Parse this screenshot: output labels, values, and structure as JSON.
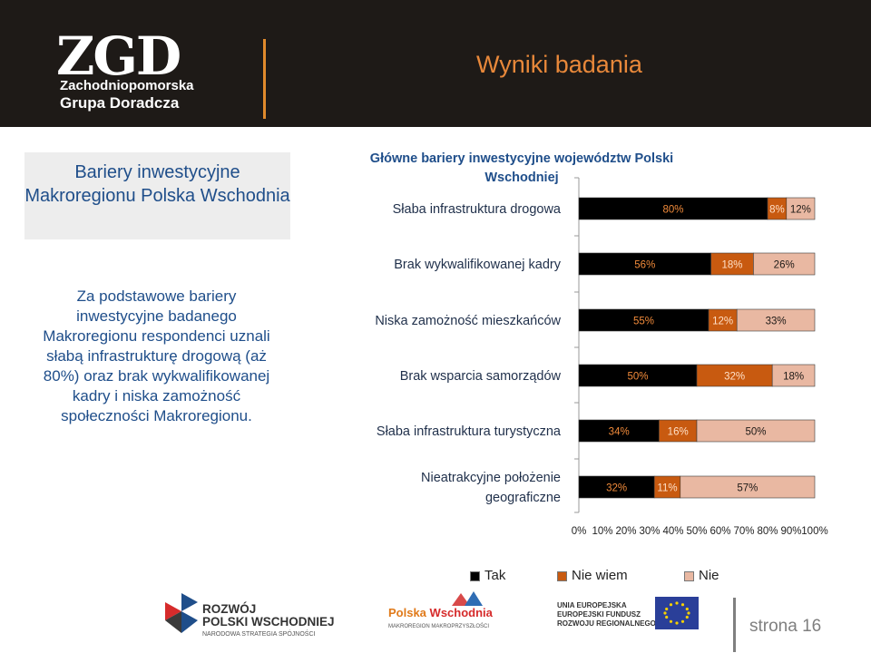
{
  "header": {
    "logo_mark": "ZGD",
    "logo_line1": "Zachodniopomorska",
    "logo_line2": "Grupa Doradcza",
    "title": "Wyniki badania"
  },
  "sidebar": {
    "title": "Bariery inwestycyjne Makroregionu Polska Wschodnia",
    "text": "Za podstawowe bariery inwestycyjne badanego Makroregionu respondenci uznali słabą infrastrukturę drogową (aż 80%) oraz brak wykwalifikowanej kadry i niska zamożność społeczności Makroregionu."
  },
  "chart_data": {
    "type": "bar",
    "orientation": "horizontal",
    "stacked": true,
    "title": "Główne bariery inwestycyjne województw Polski Wschodniej",
    "categories": [
      "Słaba infrastruktura drogowa",
      "Brak wykwalifikowanej kadry",
      "Niska zamożność mieszkańców",
      "Brak wsparcia samorządów",
      "Słaba infrastruktura turystyczna",
      "Nieatrakcyjne położenie geograficzne"
    ],
    "series": [
      {
        "name": "Tak",
        "values": [
          80,
          56,
          55,
          50,
          34,
          32
        ],
        "color": "#000000"
      },
      {
        "name": "Nie wiem",
        "values": [
          8,
          18,
          12,
          32,
          16,
          11
        ],
        "color": "#c85a10"
      },
      {
        "name": "Nie",
        "values": [
          12,
          26,
          33,
          18,
          50,
          57
        ],
        "color": "#e9b8a2"
      }
    ],
    "data_labels": [
      [
        "80%",
        "8%",
        "12%"
      ],
      [
        "56%",
        "18%",
        "26%"
      ],
      [
        "55%",
        "12%",
        "33%"
      ],
      [
        "50%",
        "32%",
        "18%"
      ],
      [
        "34%",
        "16%",
        "50%"
      ],
      [
        "32%",
        "11%",
        "57%"
      ]
    ],
    "xlim": [
      0,
      100
    ],
    "x_ticks": [
      "0%",
      "10%",
      "20%",
      "30%",
      "40%",
      "50%",
      "60%",
      "70%",
      "80%",
      "90%",
      "100%"
    ],
    "legend_position": "bottom",
    "grid": false
  },
  "footer": {
    "rpw_line1": "ROZWÓJ",
    "rpw_line2": "POLSKI WSCHODNIEJ",
    "rpw_sub": "NARODOWA STRATEGIA SPÓJNOŚCI",
    "pw_name1": "Polska",
    "pw_name2": "Wschodnia",
    "pw_sub": "MAKROREGION MAKROPRZYSZŁOŚCI",
    "ue_line1": "UNIA EUROPEJSKA",
    "ue_line2": "EUROPEJSKI FUNDUSZ",
    "ue_line3": "ROZWOJU REGIONALNEGO",
    "page_label": "strona 16"
  }
}
